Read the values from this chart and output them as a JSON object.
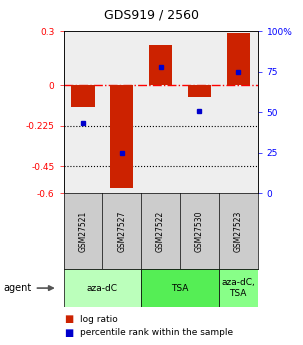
{
  "title": "GDS919 / 2560",
  "samples": [
    "GSM27521",
    "GSM27527",
    "GSM27522",
    "GSM27530",
    "GSM27523"
  ],
  "log_ratios": [
    -0.12,
    -0.57,
    0.22,
    -0.065,
    0.29
  ],
  "percentile_ranks": [
    43,
    25,
    78,
    51,
    75
  ],
  "bar_color": "#cc2200",
  "dot_color": "#0000cc",
  "ylim_left": [
    -0.6,
    0.3
  ],
  "ylim_right": [
    0,
    100
  ],
  "yticks_left": [
    0.3,
    0,
    -0.225,
    -0.45,
    -0.6
  ],
  "yticks_right": [
    100,
    75,
    50,
    25,
    0
  ],
  "hlines_dotted": [
    -0.225,
    -0.45
  ],
  "groups": [
    {
      "label": "aza-dC",
      "span": [
        0,
        1
      ],
      "color": "#bbffbb"
    },
    {
      "label": "TSA",
      "span": [
        2,
        3
      ],
      "color": "#55ee55"
    },
    {
      "label": "aza-dC,\nTSA",
      "span": [
        4,
        4
      ],
      "color": "#88ff88"
    }
  ],
  "agent_label": "agent",
  "bar_width": 0.6,
  "background_color": "#ffffff",
  "chart_bg": "#eeeeee",
  "sample_bg": "#cccccc"
}
